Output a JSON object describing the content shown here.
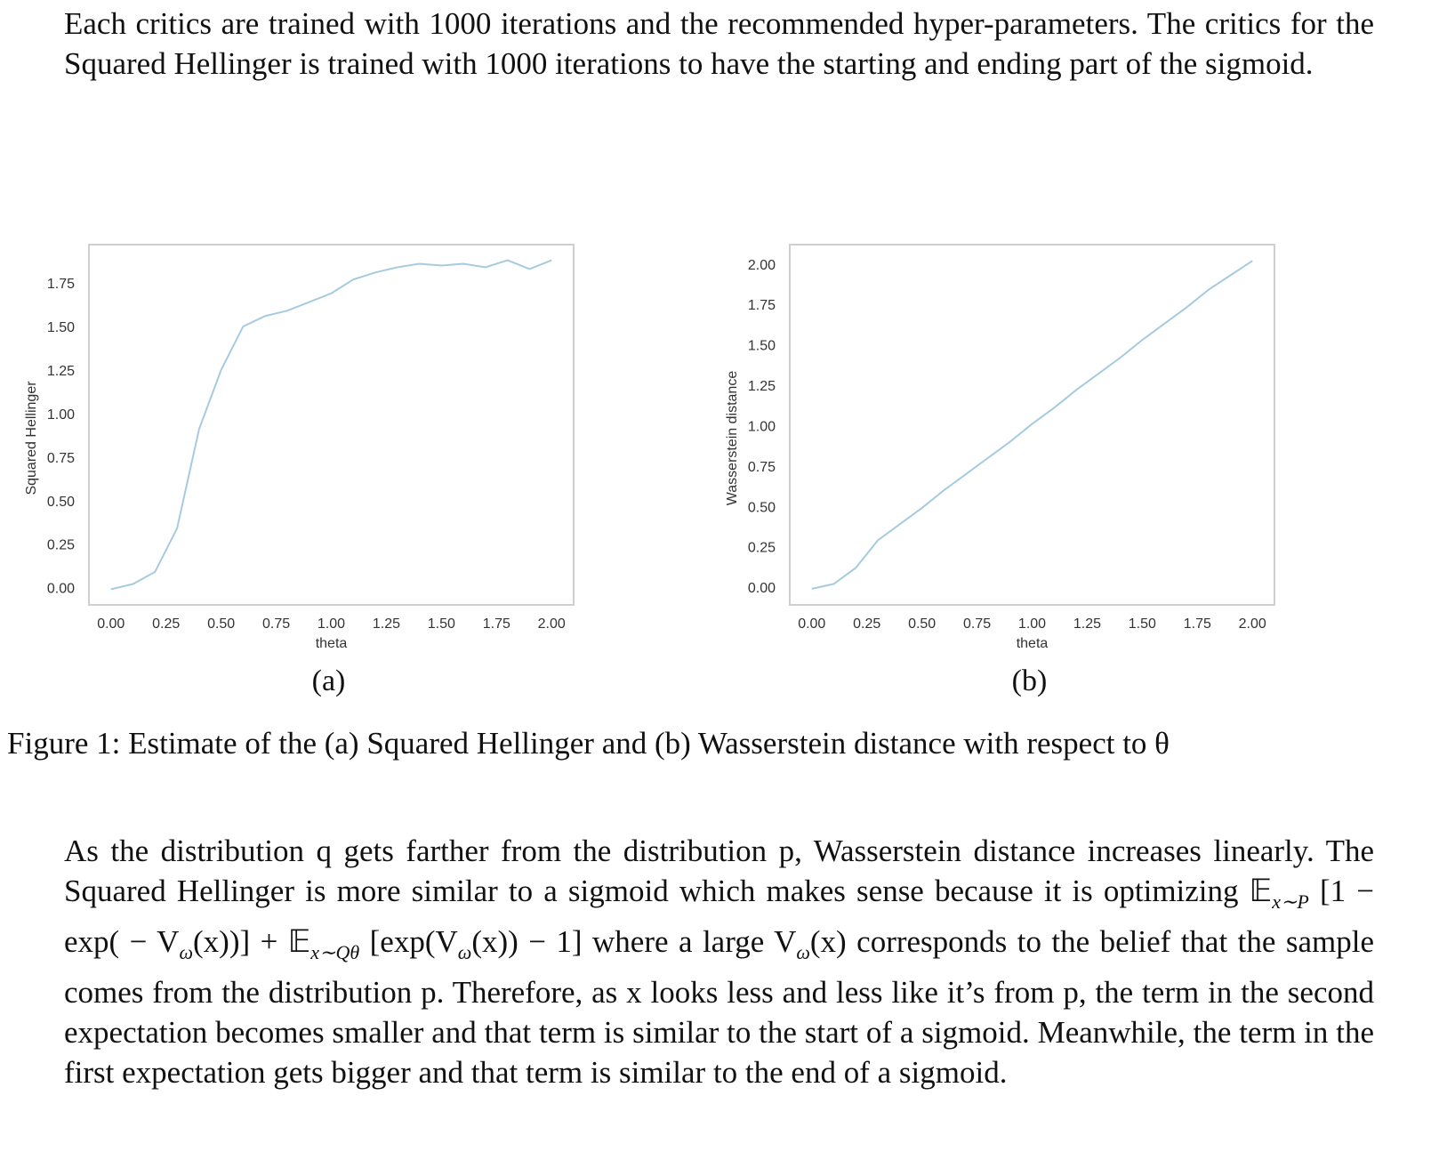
{
  "paragraphs": [
    {
      "text": "Each critics are trained with 1000 iterations and the recommended hyper-parameters.  The critics for the Squared Hellinger is trained with 1000 iterations to have the starting and ending part of the sigmoid."
    },
    {
      "runs": [
        {
          "text": "As the distribution q gets farther from the distribution p, Wasserstein distance increases linearly.  The Squared Hellinger is more similar to a sigmoid which makes sense because it is optimizing "
        },
        {
          "math": "𝔼"
        },
        {
          "sub": "x∼P"
        },
        {
          "math": " [1 − exp( − V"
        },
        {
          "sub": "ω"
        },
        {
          "math": "(x))] + 𝔼"
        },
        {
          "sub": "x∼Qθ"
        },
        {
          "math": " [exp(V"
        },
        {
          "sub": "ω"
        },
        {
          "math": "(x)) − 1]"
        },
        {
          "text": " where a large "
        },
        {
          "math": "V"
        },
        {
          "sub": "ω"
        },
        {
          "math": "(x)"
        },
        {
          "text": " corresponds to the belief that the sample comes from the distribution p.  Therefore, as "
        },
        {
          "math": "x"
        },
        {
          "text": " looks less and less like it’s from p, the term in the second expectation becomes smaller and that term is similar to the start of a sigmoid.  Meanwhile, the term in the first expectation gets bigger and that term is similar to the end of a sigmoid."
        }
      ]
    }
  ],
  "figure_caption": "Figure 1: Estimate of the (a) Squared Hellinger and (b) Wasserstein distance with respect to θ",
  "chart_data": [
    {
      "type": "line",
      "caption": "(a)",
      "x_label": "theta",
      "y_label": "Squared Hellinger",
      "color": "#a6cbe0",
      "x": [
        0,
        0.1,
        0.2,
        0.3,
        0.4,
        0.5,
        0.6,
        0.7,
        0.8,
        0.9,
        1.0,
        1.1,
        1.2,
        1.3,
        1.4,
        1.5,
        1.6,
        1.7,
        1.8,
        1.9,
        2.0
      ],
      "values": [
        0.0,
        0.03,
        0.1,
        0.35,
        0.92,
        1.26,
        1.51,
        1.57,
        1.6,
        1.65,
        1.7,
        1.78,
        1.82,
        1.85,
        1.87,
        1.86,
        1.87,
        1.85,
        1.89,
        1.84,
        1.89
      ],
      "xlim": [
        -0.1,
        2.1
      ],
      "ylim": [
        -0.09,
        1.98
      ],
      "xticks": [
        {
          "value": 0,
          "label": "0.00"
        },
        {
          "value": 0.25,
          "label": "0.25"
        },
        {
          "value": 0.5,
          "label": "0.50"
        },
        {
          "value": 0.75,
          "label": "0.75"
        },
        {
          "value": 1,
          "label": "1.00"
        },
        {
          "value": 1.25,
          "label": "1.25"
        },
        {
          "value": 1.5,
          "label": "1.50"
        },
        {
          "value": 1.75,
          "label": "1.75"
        },
        {
          "value": 2,
          "label": "2.00"
        }
      ],
      "yticks": [
        {
          "value": 0,
          "label": "0.00"
        },
        {
          "value": 0.25,
          "label": "0.25"
        },
        {
          "value": 0.5,
          "label": "0.50"
        },
        {
          "value": 0.75,
          "label": "0.75"
        },
        {
          "value": 1,
          "label": "1.00"
        },
        {
          "value": 1.25,
          "label": "1.25"
        },
        {
          "value": 1.5,
          "label": "1.50"
        },
        {
          "value": 1.75,
          "label": "1.75"
        }
      ],
      "grid": false
    },
    {
      "type": "line",
      "caption": "(b)",
      "x_label": "theta",
      "y_label": "Wasserstein distance",
      "color": "#a6cbe0",
      "x": [
        0,
        0.1,
        0.2,
        0.3,
        0.4,
        0.5,
        0.6,
        0.7,
        0.8,
        0.9,
        1.0,
        1.1,
        1.2,
        1.3,
        1.4,
        1.5,
        1.6,
        1.7,
        1.8,
        1.9,
        2.0
      ],
      "values": [
        0.0,
        0.03,
        0.13,
        0.3,
        0.4,
        0.5,
        0.61,
        0.71,
        0.81,
        0.91,
        1.02,
        1.12,
        1.23,
        1.33,
        1.43,
        1.54,
        1.64,
        1.74,
        1.85,
        1.94,
        2.03
      ],
      "xlim": [
        -0.1,
        2.1
      ],
      "ylim": [
        -0.1,
        2.13
      ],
      "xticks": [
        {
          "value": 0,
          "label": "0.00"
        },
        {
          "value": 0.25,
          "label": "0.25"
        },
        {
          "value": 0.5,
          "label": "0.50"
        },
        {
          "value": 0.75,
          "label": "0.75"
        },
        {
          "value": 1,
          "label": "1.00"
        },
        {
          "value": 1.25,
          "label": "1.25"
        },
        {
          "value": 1.5,
          "label": "1.50"
        },
        {
          "value": 1.75,
          "label": "1.75"
        },
        {
          "value": 2,
          "label": "2.00"
        }
      ],
      "yticks": [
        {
          "value": 0,
          "label": "0.00"
        },
        {
          "value": 0.25,
          "label": "0.25"
        },
        {
          "value": 0.5,
          "label": "0.50"
        },
        {
          "value": 0.75,
          "label": "0.75"
        },
        {
          "value": 1,
          "label": "1.00"
        },
        {
          "value": 1.25,
          "label": "1.25"
        },
        {
          "value": 1.5,
          "label": "1.50"
        },
        {
          "value": 1.75,
          "label": "1.75"
        },
        {
          "value": 2,
          "label": "2.00"
        }
      ],
      "grid": false
    }
  ]
}
